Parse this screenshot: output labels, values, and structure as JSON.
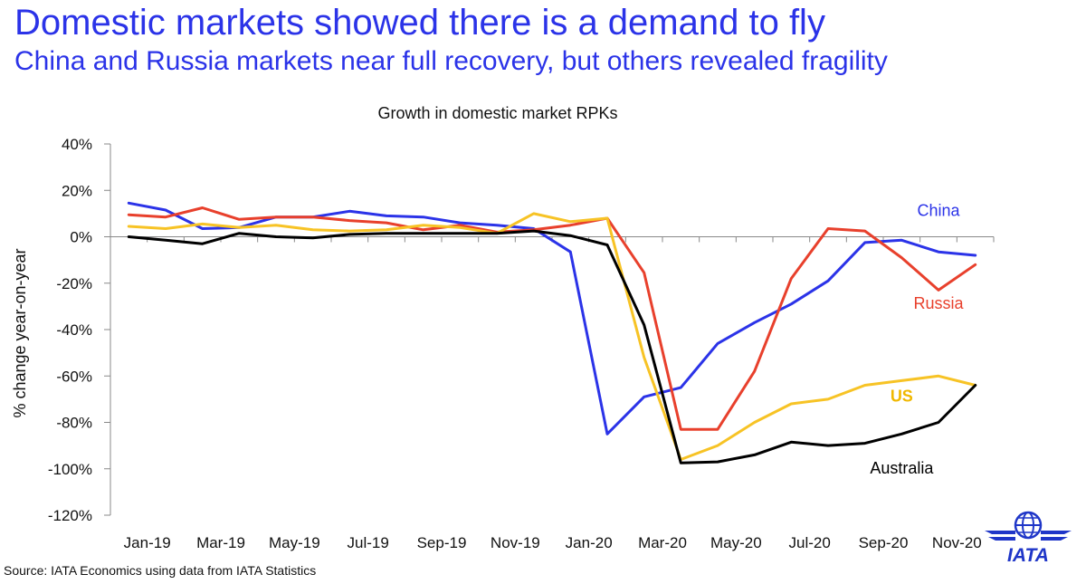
{
  "header": {
    "title": "Domestic markets showed there is a demand to fly",
    "subtitle": "China and Russia markets near full recovery, but others revealed fragility"
  },
  "footer": {
    "source": "Source: IATA Economics using data from IATA Statistics",
    "logo_text": "IATA"
  },
  "colors": {
    "accent": "#2b33e8",
    "china": "#2b33e8",
    "russia": "#e8402c",
    "us": "#f7c325",
    "australia": "#000000"
  },
  "chart_data": {
    "type": "line",
    "title": "Growth in domestic market RPKs",
    "xlabel": "",
    "ylabel": "% change year-on-year",
    "ylim": [
      -120,
      40
    ],
    "yticks": [
      40,
      20,
      0,
      -20,
      -40,
      -60,
      -80,
      -100,
      -120
    ],
    "ytick_labels": [
      "40%",
      "20%",
      "0%",
      "-20%",
      "-40%",
      "-60%",
      "-80%",
      "-100%",
      "-120%"
    ],
    "x": [
      "Jan-19",
      "Feb-19",
      "Mar-19",
      "Apr-19",
      "May-19",
      "Jun-19",
      "Jul-19",
      "Aug-19",
      "Sep-19",
      "Oct-19",
      "Nov-19",
      "Dec-19",
      "Jan-20",
      "Feb-20",
      "Mar-20",
      "Apr-20",
      "May-20",
      "Jun-20",
      "Jul-20",
      "Aug-20",
      "Sep-20",
      "Oct-20",
      "Nov-20",
      "Dec-20"
    ],
    "xtick_labels": [
      "Jan-19",
      "Mar-19",
      "May-19",
      "Jul-19",
      "Sep-19",
      "Nov-19",
      "Jan-20",
      "Mar-20",
      "May-20",
      "Jul-20",
      "Sep-20",
      "Nov-20"
    ],
    "series": [
      {
        "name": "China",
        "color": "#2b33e8",
        "label_x": "Nov-20",
        "label_y": 9,
        "values": [
          14.5,
          11.5,
          3.5,
          4.0,
          8.5,
          8.5,
          11.0,
          9.0,
          8.5,
          6.0,
          5.0,
          3.5,
          -6.5,
          -85,
          -69,
          -65,
          -46,
          -37,
          -29,
          -19,
          -2.5,
          -1.5,
          -6.5,
          -8
        ]
      },
      {
        "name": "Russia",
        "color": "#e8402c",
        "label_x": "Nov-20",
        "label_y": -31,
        "values": [
          9.5,
          8.5,
          12.5,
          7.5,
          8.5,
          8.5,
          7.0,
          6.0,
          3.0,
          5.0,
          2.0,
          3.0,
          5.0,
          8.0,
          -15.5,
          -83,
          -83,
          -58,
          -18,
          3.5,
          2.5,
          -9,
          -23,
          -12
        ]
      },
      {
        "name": "US",
        "color": "#f7c325",
        "label_x": "Oct-20",
        "label_y": -71,
        "values": [
          4.5,
          3.5,
          5.5,
          4.0,
          5.0,
          3.0,
          2.5,
          3.0,
          5.0,
          4.0,
          1.5,
          10.0,
          6.5,
          8.0,
          -52,
          -96,
          -90,
          -80,
          -72,
          -70,
          -64,
          -62,
          -60,
          -64
        ]
      },
      {
        "name": "Australia",
        "color": "#000000",
        "label_x": "Oct-20",
        "label_y": -102,
        "values": [
          0.0,
          -1.5,
          -3.0,
          1.5,
          0.0,
          -0.5,
          1.0,
          1.5,
          1.5,
          1.5,
          1.5,
          2.5,
          0.5,
          -3.5,
          -38,
          -97.5,
          -97,
          -94,
          -88.5,
          -90,
          -89,
          -85,
          -80,
          -64
        ]
      }
    ]
  }
}
